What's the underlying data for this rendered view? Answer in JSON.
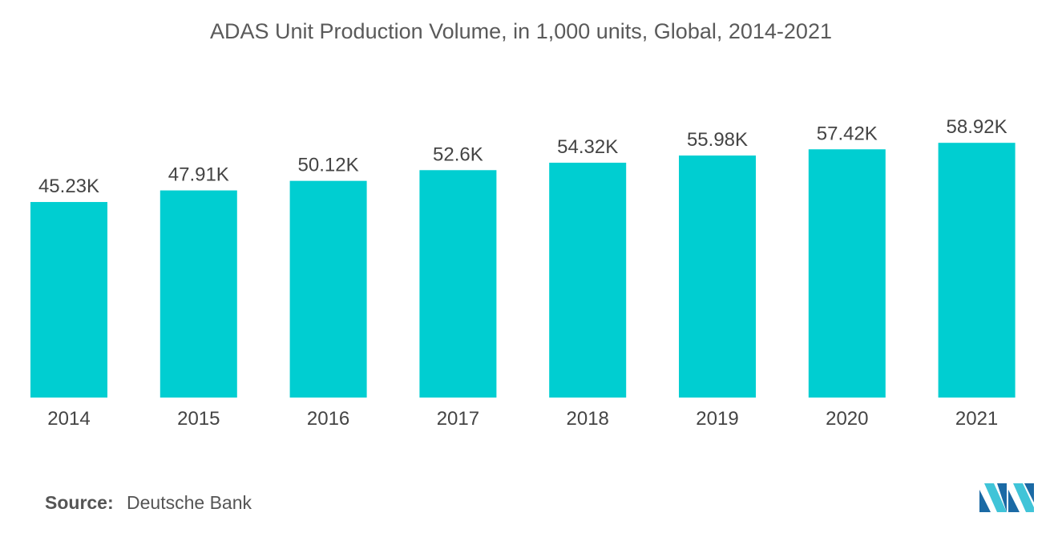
{
  "chart_data": {
    "type": "bar",
    "title": "ADAS Unit Production Volume, in 1,000 units, Global, 2014-2021",
    "categories": [
      "2014",
      "2015",
      "2016",
      "2017",
      "2018",
      "2019",
      "2020",
      "2021"
    ],
    "values": [
      45.23,
      47.91,
      50.12,
      52.6,
      54.32,
      55.98,
      57.42,
      58.92
    ],
    "value_labels": [
      "45.23K",
      "47.91K",
      "50.12K",
      "52.6K",
      "54.32K",
      "55.98K",
      "57.42K",
      "58.92K"
    ],
    "xlabel": "",
    "ylabel": "",
    "ylim": [
      0,
      66
    ],
    "grid": false,
    "legend": "none",
    "bar_color": "#00CED1"
  },
  "source": {
    "label": "Source:",
    "text": "Deutsche Bank"
  },
  "logo": {
    "icon": "mordor-intelligence-logo-icon",
    "colors": [
      "#1b6aa5",
      "#40c4d8"
    ]
  }
}
